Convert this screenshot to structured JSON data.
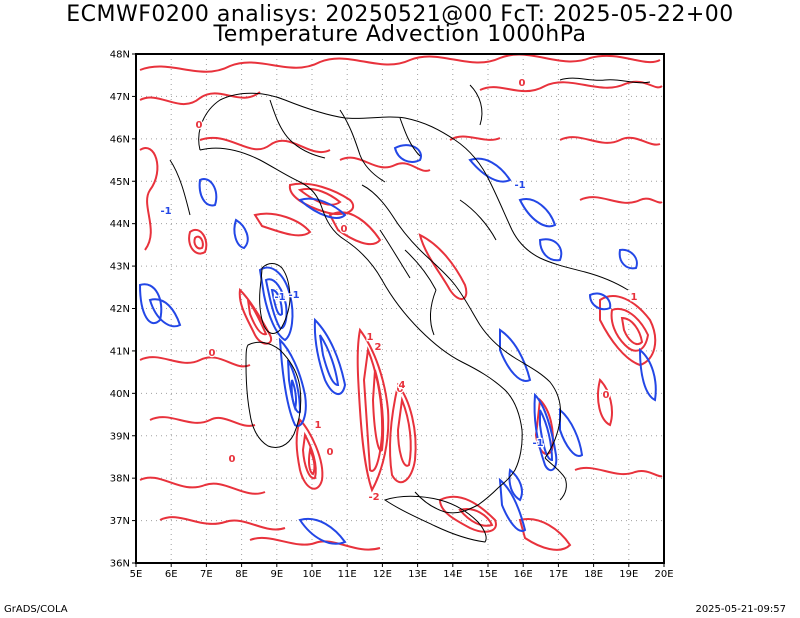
{
  "title": {
    "line1": "ECMWF0200 analisys: 20250521@00 FcT: 2025-05-22+00",
    "line2": "Temperature Advection 1000hPa"
  },
  "footer": {
    "left": "GrADS/COLA",
    "right": "2025-05-21-09:57"
  },
  "map": {
    "lon_range": [
      5,
      20
    ],
    "lat_range": [
      36,
      48
    ],
    "lon_ticks": [
      "5E",
      "6E",
      "7E",
      "8E",
      "9E",
      "10E",
      "11E",
      "12E",
      "13E",
      "14E",
      "15E",
      "16E",
      "17E",
      "18E",
      "19E",
      "20E"
    ],
    "lat_ticks": [
      "36N",
      "37N",
      "38N",
      "39N",
      "40N",
      "41N",
      "42N",
      "43N",
      "44N",
      "45N",
      "46N",
      "47N",
      "48N"
    ],
    "grid": true,
    "colors": {
      "warm_advection": "#e8323c",
      "cold_advection": "#2347e6",
      "coastline": "#000000",
      "grid": "#a0a0a0"
    },
    "contour_labels": [
      "0",
      "-1",
      "1",
      "2",
      "3",
      "4",
      "-2"
    ]
  }
}
